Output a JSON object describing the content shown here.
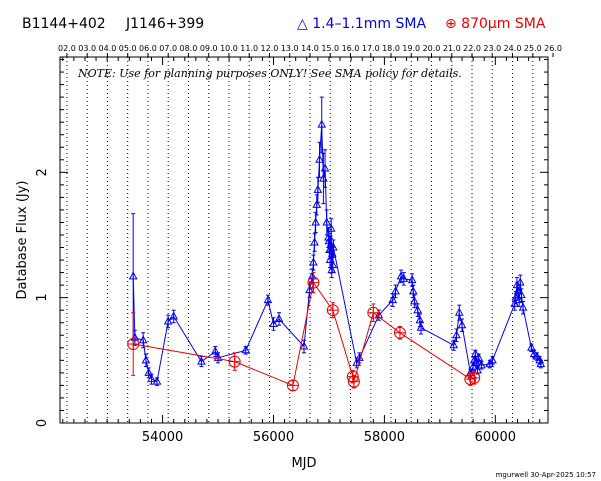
{
  "header": {
    "source_a": "B1144+402",
    "source_b": "J1146+399",
    "legend_blue": "△ 1.4–1.1mm SMA",
    "legend_red": "⊕ 870μm SMA"
  },
  "colors": {
    "blue": "#0000ee",
    "red": "#ee0000",
    "axis": "#000000"
  },
  "chart_data": {
    "type": "scatter",
    "title": "",
    "xlabel": "MJD",
    "ylabel": "Database Flux (Jy)",
    "xlim": [
      52150,
      60950
    ],
    "ylim": [
      0,
      2.92
    ],
    "xticks": [
      54000,
      56000,
      58000,
      60000
    ],
    "xtick_labels": [
      "54000",
      "56000",
      "58000",
      "60000"
    ],
    "yticks": [
      0,
      1,
      2
    ],
    "ytick_labels": [
      "0",
      "1",
      "2"
    ],
    "top_axis_years": [
      "02.0",
      "03.0",
      "04.0",
      "05.0",
      "06.0",
      "07.0",
      "08.0",
      "09.0",
      "10.0",
      "11.0",
      "12.0",
      "13.0",
      "14.0",
      "15.0",
      "16.0",
      "17.0",
      "18.0",
      "19.0",
      "20.0",
      "21.0",
      "22.0",
      "23.0",
      "24.0",
      "25.0",
      "26.0"
    ],
    "year_lines_mjd": [
      52275,
      52640,
      53005,
      53371,
      53736,
      54101,
      54466,
      54832,
      55197,
      55562,
      55927,
      56293,
      56658,
      57023,
      57388,
      57754,
      58119,
      58484,
      58849,
      59215,
      59580,
      59945,
      60310,
      60676,
      61041
    ],
    "note": "NOTE: Use for planning purposes ONLY!  See SMA policy for details.",
    "credit": "mgurwell 30-Apr-2025 10:57",
    "grid": "vertical dotted lines at year boundaries",
    "legend": "top header",
    "series": [
      {
        "name": "1.4–1.1mm SMA",
        "marker": "triangle",
        "color": "#0000ee",
        "x": [
          53470,
          53500,
          53650,
          53700,
          53750,
          53800,
          53900,
          54100,
          54200,
          54700,
          54950,
          55000,
          55500,
          55900,
          56000,
          56100,
          56550,
          56650,
          56700,
          56720,
          56740,
          56760,
          56780,
          56800,
          56830,
          56870,
          56900,
          56930,
          56960,
          56990,
          57000,
          57010,
          57020,
          57030,
          57040,
          57050,
          57060,
          57070,
          57080,
          57500,
          57550,
          57900,
          58150,
          58200,
          58300,
          58350,
          58500,
          58520,
          58540,
          58600,
          58640,
          58660,
          59250,
          59300,
          59350,
          59400,
          59550,
          59600,
          59620,
          59640,
          59660,
          59680,
          59700,
          59750,
          59900,
          59950,
          60350,
          60370,
          60390,
          60410,
          60430,
          60450,
          60470,
          60500,
          60650,
          60700,
          60750,
          60800,
          60820
        ],
        "y": [
          1.17,
          0.68,
          0.66,
          0.5,
          0.4,
          0.35,
          0.33,
          0.81,
          0.85,
          0.49,
          0.57,
          0.52,
          0.58,
          0.98,
          0.79,
          0.83,
          0.61,
          1.06,
          1.17,
          1.28,
          1.44,
          1.6,
          1.74,
          1.86,
          2.1,
          2.38,
          1.95,
          2.03,
          1.6,
          1.48,
          1.45,
          1.38,
          1.3,
          1.42,
          1.55,
          1.22,
          1.35,
          1.26,
          1.4,
          0.48,
          0.52,
          0.86,
          0.98,
          1.05,
          1.17,
          1.15,
          1.14,
          1.05,
          0.97,
          0.9,
          0.82,
          0.76,
          0.62,
          0.7,
          0.88,
          0.78,
          0.4,
          0.45,
          0.5,
          0.55,
          0.48,
          0.42,
          0.52,
          0.46,
          0.47,
          0.5,
          0.95,
          1.0,
          1.1,
          1.05,
          0.98,
          1.12,
          1.02,
          0.92,
          0.6,
          0.55,
          0.53,
          0.5,
          0.47
        ],
        "err": [
          0.5,
          0.06,
          0.06,
          0.05,
          0.04,
          0.04,
          0.03,
          0.05,
          0.05,
          0.04,
          0.04,
          0.04,
          0.03,
          0.04,
          0.05,
          0.05,
          0.05,
          0.06,
          0.06,
          0.06,
          0.07,
          0.08,
          0.08,
          0.1,
          0.14,
          0.22,
          0.2,
          0.15,
          0.1,
          0.08,
          0.08,
          0.07,
          0.06,
          0.07,
          0.08,
          0.06,
          0.06,
          0.06,
          0.06,
          0.04,
          0.04,
          0.04,
          0.05,
          0.05,
          0.05,
          0.05,
          0.05,
          0.05,
          0.05,
          0.05,
          0.05,
          0.05,
          0.04,
          0.05,
          0.06,
          0.05,
          0.03,
          0.03,
          0.03,
          0.03,
          0.03,
          0.03,
          0.03,
          0.03,
          0.03,
          0.03,
          0.05,
          0.05,
          0.06,
          0.05,
          0.05,
          0.06,
          0.05,
          0.05,
          0.03,
          0.03,
          0.03,
          0.03,
          0.03
        ]
      },
      {
        "name": "870μm SMA",
        "marker": "circle-plus",
        "color": "#ee0000",
        "x": [
          53470,
          55300,
          56350,
          56720,
          57070,
          57430,
          57450,
          57800,
          58280,
          59550,
          59620
        ],
        "y": [
          0.63,
          0.49,
          0.3,
          1.12,
          0.9,
          0.37,
          0.33,
          0.88,
          0.72,
          0.35,
          0.36
        ],
        "err": [
          0.25,
          0.07,
          0.04,
          0.08,
          0.06,
          0.05,
          0.05,
          0.07,
          0.05,
          0.05,
          0.05
        ]
      }
    ]
  }
}
